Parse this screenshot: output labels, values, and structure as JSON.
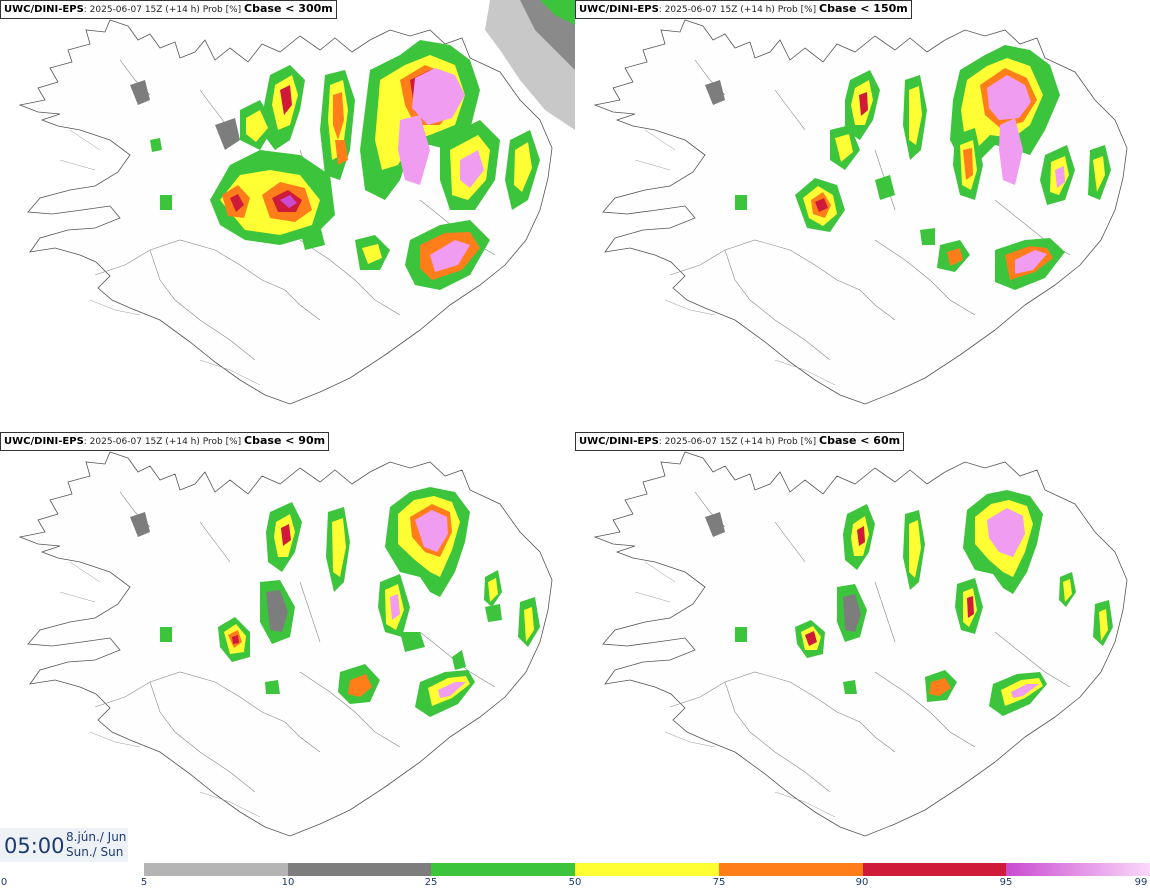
{
  "panels": [
    {
      "model": "UWC/DINI-EPS",
      "info": ": 2025-06-07 15Z (+14 h) Prob [%] ",
      "threshold": "Cbase < 300m"
    },
    {
      "model": "UWC/DINI-EPS",
      "info": ": 2025-06-07 15Z (+14 h) Prob [%] ",
      "threshold": "Cbase < 150m"
    },
    {
      "model": "UWC/DINI-EPS",
      "info": ": 2025-06-07 15Z (+14 h) Prob [%] ",
      "threshold": "Cbase < 90m"
    },
    {
      "model": "UWC/DINI-EPS",
      "info": ": 2025-06-07 15Z (+14 h) Prob [%] ",
      "threshold": "Cbase < 60m"
    }
  ],
  "time": {
    "clock": "05:00",
    "date_line": "8.jún./ Jun",
    "day_line": "Sun./ Sun"
  },
  "legend": {
    "labels": [
      "0",
      "5",
      "10",
      "25",
      "50",
      "75",
      "90",
      "95",
      "99"
    ],
    "colors": [
      "#b4b4b4",
      "#7d7d7d",
      "#3cc43c",
      "#ffff33",
      "#ff7e1a",
      "#d01a3a",
      "#c94bd0"
    ]
  }
}
